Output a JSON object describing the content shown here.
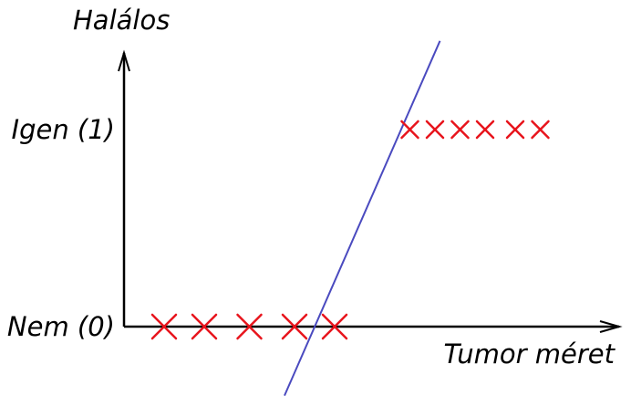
{
  "chart_data": {
    "type": "scatter",
    "title": "",
    "xlabel": "Tumor méret",
    "ylabel": "Halálos",
    "y_ticks": [
      {
        "value": 1,
        "label": "Igen (1)"
      },
      {
        "value": 0,
        "label": "Nem (0)"
      }
    ],
    "xlim": [
      0,
      10
    ],
    "ylim": [
      -0.35,
      1.45
    ],
    "grid": false,
    "series": [
      {
        "marker": "x",
        "color": "#e8141c",
        "points": [
          {
            "x": 0.8,
            "y": 0
          },
          {
            "x": 1.6,
            "y": 0
          },
          {
            "x": 2.5,
            "y": 0
          },
          {
            "x": 3.4,
            "y": 0
          },
          {
            "x": 4.2,
            "y": 0
          },
          {
            "x": 5.7,
            "y": 1
          },
          {
            "x": 6.2,
            "y": 1
          },
          {
            "x": 6.7,
            "y": 1
          },
          {
            "x": 7.2,
            "y": 1
          },
          {
            "x": 7.8,
            "y": 1
          },
          {
            "x": 8.3,
            "y": 1
          }
        ]
      },
      {
        "type": "line",
        "color": "#4a4abf",
        "points": [
          {
            "x": 3.2,
            "y": -0.35
          },
          {
            "x": 6.3,
            "y": 1.45
          }
        ]
      }
    ]
  }
}
